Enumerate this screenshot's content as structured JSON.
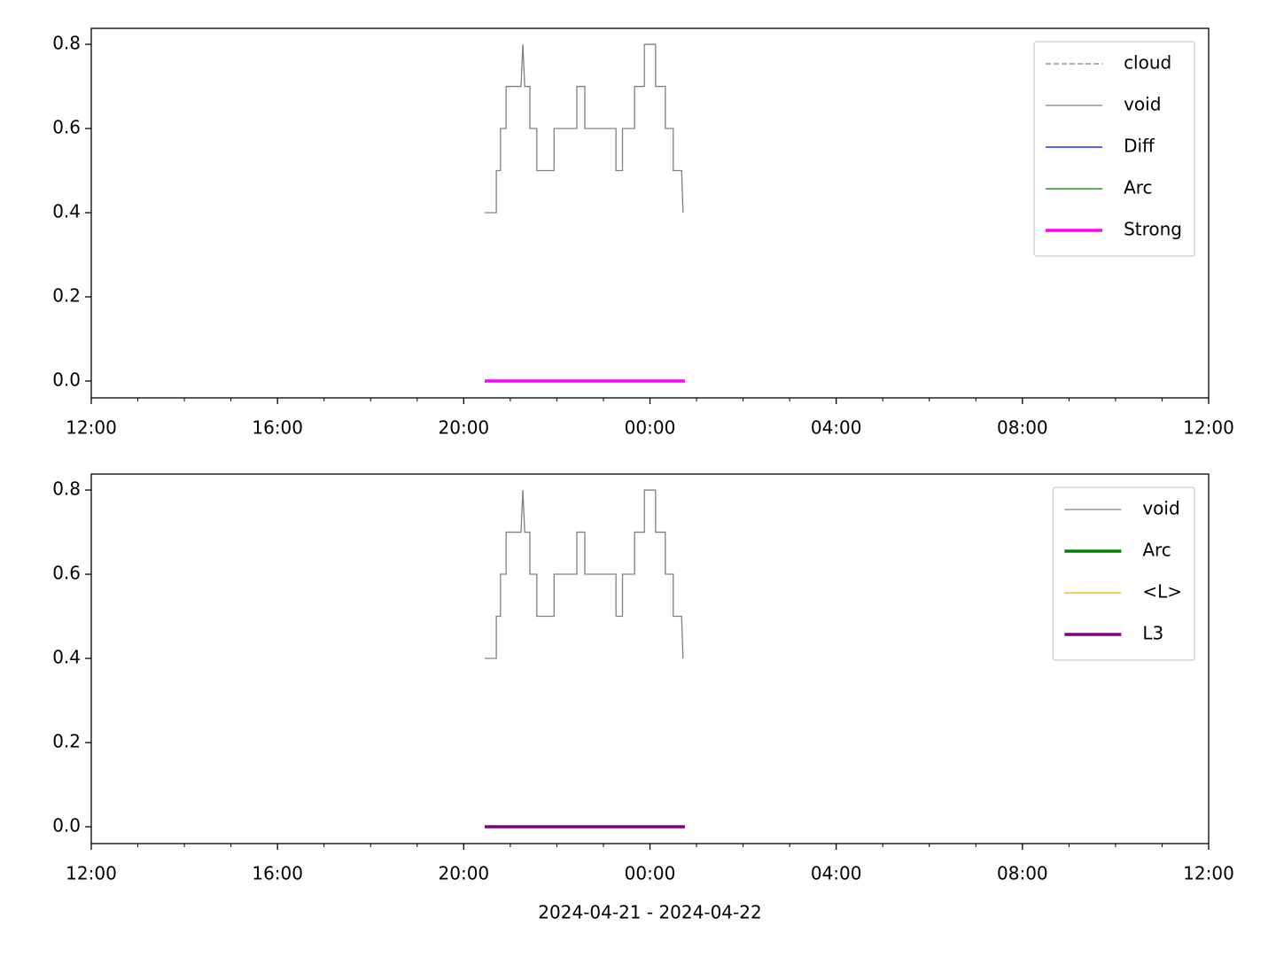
{
  "chart_data": [
    {
      "type": "line",
      "legend": "upper right",
      "xlim": [
        12,
        36
      ],
      "ylim": [
        -0.04,
        0.838
      ],
      "xticks": [
        {
          "value": 12,
          "label": "12:00"
        },
        {
          "value": 16,
          "label": "16:00"
        },
        {
          "value": 20,
          "label": "20:00"
        },
        {
          "value": 24,
          "label": "00:00"
        },
        {
          "value": 28,
          "label": "04:00"
        },
        {
          "value": 32,
          "label": "08:00"
        },
        {
          "value": 36,
          "label": "12:00"
        }
      ],
      "xminorticks": [
        13,
        14,
        15,
        17,
        18,
        19,
        21,
        22,
        23,
        25,
        26,
        27,
        29,
        30,
        31,
        33,
        34,
        35
      ],
      "yticks": [
        {
          "value": 0,
          "label": "0.0"
        },
        0.2,
        0.4,
        0.6,
        0.8
      ],
      "series": [
        {
          "name": "cloud",
          "color": "#808080",
          "dash": "dashed",
          "width": 1.3,
          "x": [],
          "values": []
        },
        {
          "name": "void",
          "color": "#808080",
          "width": 1.3,
          "x": [
            20.45,
            20.7,
            20.7,
            20.79,
            20.79,
            20.91,
            20.91,
            21.23,
            21.27,
            21.31,
            21.42,
            21.42,
            21.57,
            21.57,
            21.94,
            21.94,
            22.43,
            22.43,
            22.6,
            22.6,
            23.27,
            23.27,
            23.41,
            23.41,
            23.67,
            23.67,
            23.88,
            23.88,
            24.12,
            24.12,
            24.33,
            24.33,
            24.5,
            24.5,
            24.68,
            24.71
          ],
          "values": [
            0.4,
            0.4,
            0.5,
            0.5,
            0.6,
            0.6,
            0.7,
            0.7,
            0.8,
            0.7,
            0.7,
            0.6,
            0.6,
            0.5,
            0.5,
            0.6,
            0.6,
            0.7,
            0.7,
            0.6,
            0.6,
            0.5,
            0.5,
            0.6,
            0.6,
            0.7,
            0.7,
            0.8,
            0.8,
            0.7,
            0.7,
            0.6,
            0.6,
            0.5,
            0.5,
            0.4
          ]
        },
        {
          "name": "Diff",
          "color": "#0000ff",
          "width": 1.3,
          "x": [],
          "values": []
        },
        {
          "name": "Arc",
          "color": "#008000",
          "width": 1.3,
          "x": [],
          "values": []
        },
        {
          "name": "Strong",
          "color": "#ff00ff",
          "width": 3.5,
          "x": [
            20.45,
            24.75
          ],
          "values": [
            0,
            0
          ]
        }
      ]
    },
    {
      "type": "line",
      "legend": "upper right",
      "xlabel": "2024-04-21 - 2024-04-22",
      "xlim": [
        12,
        36
      ],
      "ylim": [
        -0.04,
        0.838
      ],
      "xticks": [
        {
          "value": 12,
          "label": "12:00"
        },
        {
          "value": 16,
          "label": "16:00"
        },
        {
          "value": 20,
          "label": "20:00"
        },
        {
          "value": 24,
          "label": "00:00"
        },
        {
          "value": 28,
          "label": "04:00"
        },
        {
          "value": 32,
          "label": "08:00"
        },
        {
          "value": 36,
          "label": "12:00"
        }
      ],
      "xminorticks": [
        13,
        14,
        15,
        17,
        18,
        19,
        21,
        22,
        23,
        25,
        26,
        27,
        29,
        30,
        31,
        33,
        34,
        35
      ],
      "yticks": [
        {
          "value": 0,
          "label": "0.0"
        },
        0.2,
        0.4,
        0.6,
        0.8
      ],
      "series": [
        {
          "name": "void",
          "color": "#808080",
          "width": 1.3,
          "x": [
            20.45,
            20.7,
            20.7,
            20.79,
            20.79,
            20.91,
            20.91,
            21.23,
            21.27,
            21.31,
            21.42,
            21.42,
            21.57,
            21.57,
            21.94,
            21.94,
            22.43,
            22.43,
            22.6,
            22.6,
            23.27,
            23.27,
            23.41,
            23.41,
            23.67,
            23.67,
            23.88,
            23.88,
            24.12,
            24.12,
            24.33,
            24.33,
            24.5,
            24.5,
            24.68,
            24.71
          ],
          "values": [
            0.4,
            0.4,
            0.5,
            0.5,
            0.6,
            0.6,
            0.7,
            0.7,
            0.8,
            0.7,
            0.7,
            0.6,
            0.6,
            0.5,
            0.5,
            0.6,
            0.6,
            0.7,
            0.7,
            0.6,
            0.6,
            0.5,
            0.5,
            0.6,
            0.6,
            0.7,
            0.7,
            0.8,
            0.8,
            0.7,
            0.7,
            0.6,
            0.6,
            0.5,
            0.5,
            0.4
          ]
        },
        {
          "name": "Arc",
          "color": "#008000",
          "width": 3.5,
          "x": [],
          "values": []
        },
        {
          "name": "<L>",
          "color": "#ffa500",
          "width": 1.3,
          "x": [],
          "values": []
        },
        {
          "name": "L3",
          "color": "#800080",
          "width": 3.5,
          "x": [
            20.45,
            24.75
          ],
          "values": [
            0,
            0
          ]
        }
      ]
    }
  ]
}
